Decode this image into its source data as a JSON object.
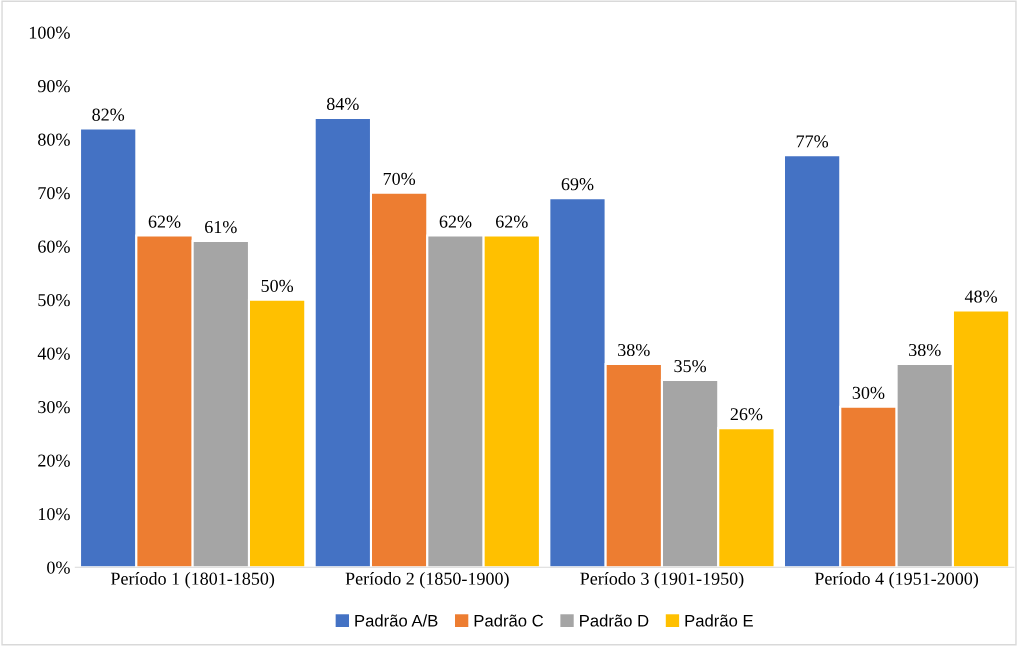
{
  "chart_data": {
    "type": "bar",
    "categories": [
      "Período 1 (1801-1850)",
      "Período 2 (1850-1900)",
      "Período 3 (1901-1950)",
      "Período 4 (1951-2000)"
    ],
    "series": [
      {
        "name": "Padrão A/B",
        "color": "#4472c4",
        "values": [
          82,
          84,
          69,
          77
        ],
        "value_labels": [
          "82%",
          "84%",
          "69%",
          "77%"
        ]
      },
      {
        "name": "Padrão C",
        "color": "#ed7d31",
        "values": [
          62,
          70,
          38,
          30
        ],
        "value_labels": [
          "62%",
          "70%",
          "38%",
          "30%"
        ]
      },
      {
        "name": "Padrão D",
        "color": "#a5a5a5",
        "values": [
          61,
          62,
          35,
          38
        ],
        "value_labels": [
          "61%",
          "62%",
          "35%",
          "38%"
        ]
      },
      {
        "name": "Padrão E",
        "color": "#ffc000",
        "values": [
          50,
          62,
          26,
          48
        ],
        "value_labels": [
          "50%",
          "62%",
          "26%",
          "48%"
        ]
      }
    ],
    "ylim": [
      0,
      100
    ],
    "yticks": [
      {
        "value": 0,
        "label": "0%"
      },
      {
        "value": 10,
        "label": "10%"
      },
      {
        "value": 20,
        "label": "20%"
      },
      {
        "value": 30,
        "label": "30%"
      },
      {
        "value": 40,
        "label": "40%"
      },
      {
        "value": 50,
        "label": "50%"
      },
      {
        "value": 60,
        "label": "60%"
      },
      {
        "value": 70,
        "label": "70%"
      },
      {
        "value": 80,
        "label": "80%"
      },
      {
        "value": 90,
        "label": "90%"
      },
      {
        "value": 100,
        "label": "100%"
      }
    ],
    "grid": false,
    "legend": "bottom"
  }
}
